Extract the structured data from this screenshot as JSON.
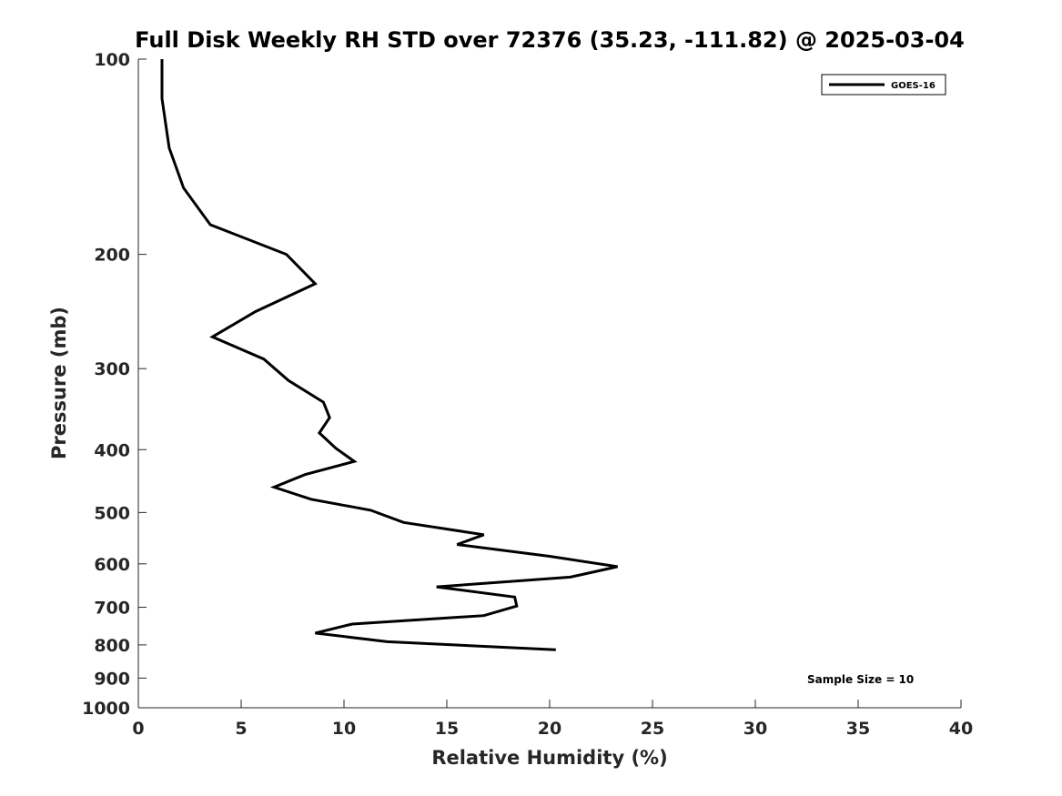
{
  "chart_data": {
    "type": "line",
    "title": "Full Disk Weekly RH STD over 72376 (35.23, -111.82) @ 2025-03-04",
    "xlabel": "Relative Humidity (%)",
    "ylabel": "Pressure (mb)",
    "xlim": [
      0,
      40
    ],
    "ylim": [
      100,
      1000
    ],
    "y_scale": "log",
    "y_reversed": true,
    "x_ticks": [
      0,
      5,
      10,
      15,
      20,
      25,
      30,
      35,
      40
    ],
    "y_ticks": [
      100,
      200,
      300,
      400,
      500,
      600,
      700,
      800,
      900,
      1000
    ],
    "grid": false,
    "legend_position": "top-right",
    "annotation": "Sample Size = 10",
    "series": [
      {
        "name": "GOES-16",
        "color": "#000000",
        "x": [
          1.15,
          1.15,
          1.5,
          2.2,
          3.5,
          7.2,
          8.6,
          5.7,
          3.6,
          6.1,
          7.3,
          9.0,
          9.3,
          8.8,
          9.6,
          10.5,
          8.1,
          6.6,
          8.4,
          11.3,
          12.9,
          16.8,
          15.5,
          20.0,
          23.3,
          21.0,
          14.5,
          18.3,
          18.4,
          16.8,
          10.4,
          8.6,
          12.1,
          20.3
        ],
        "y": [
          100,
          115,
          137,
          158,
          180,
          200,
          222,
          245,
          268,
          290,
          313,
          338,
          357,
          377,
          398,
          417,
          437,
          457,
          477,
          496,
          518,
          541,
          560,
          584,
          606,
          629,
          651,
          675,
          697,
          721,
          743,
          767,
          791,
          814
        ]
      }
    ]
  }
}
